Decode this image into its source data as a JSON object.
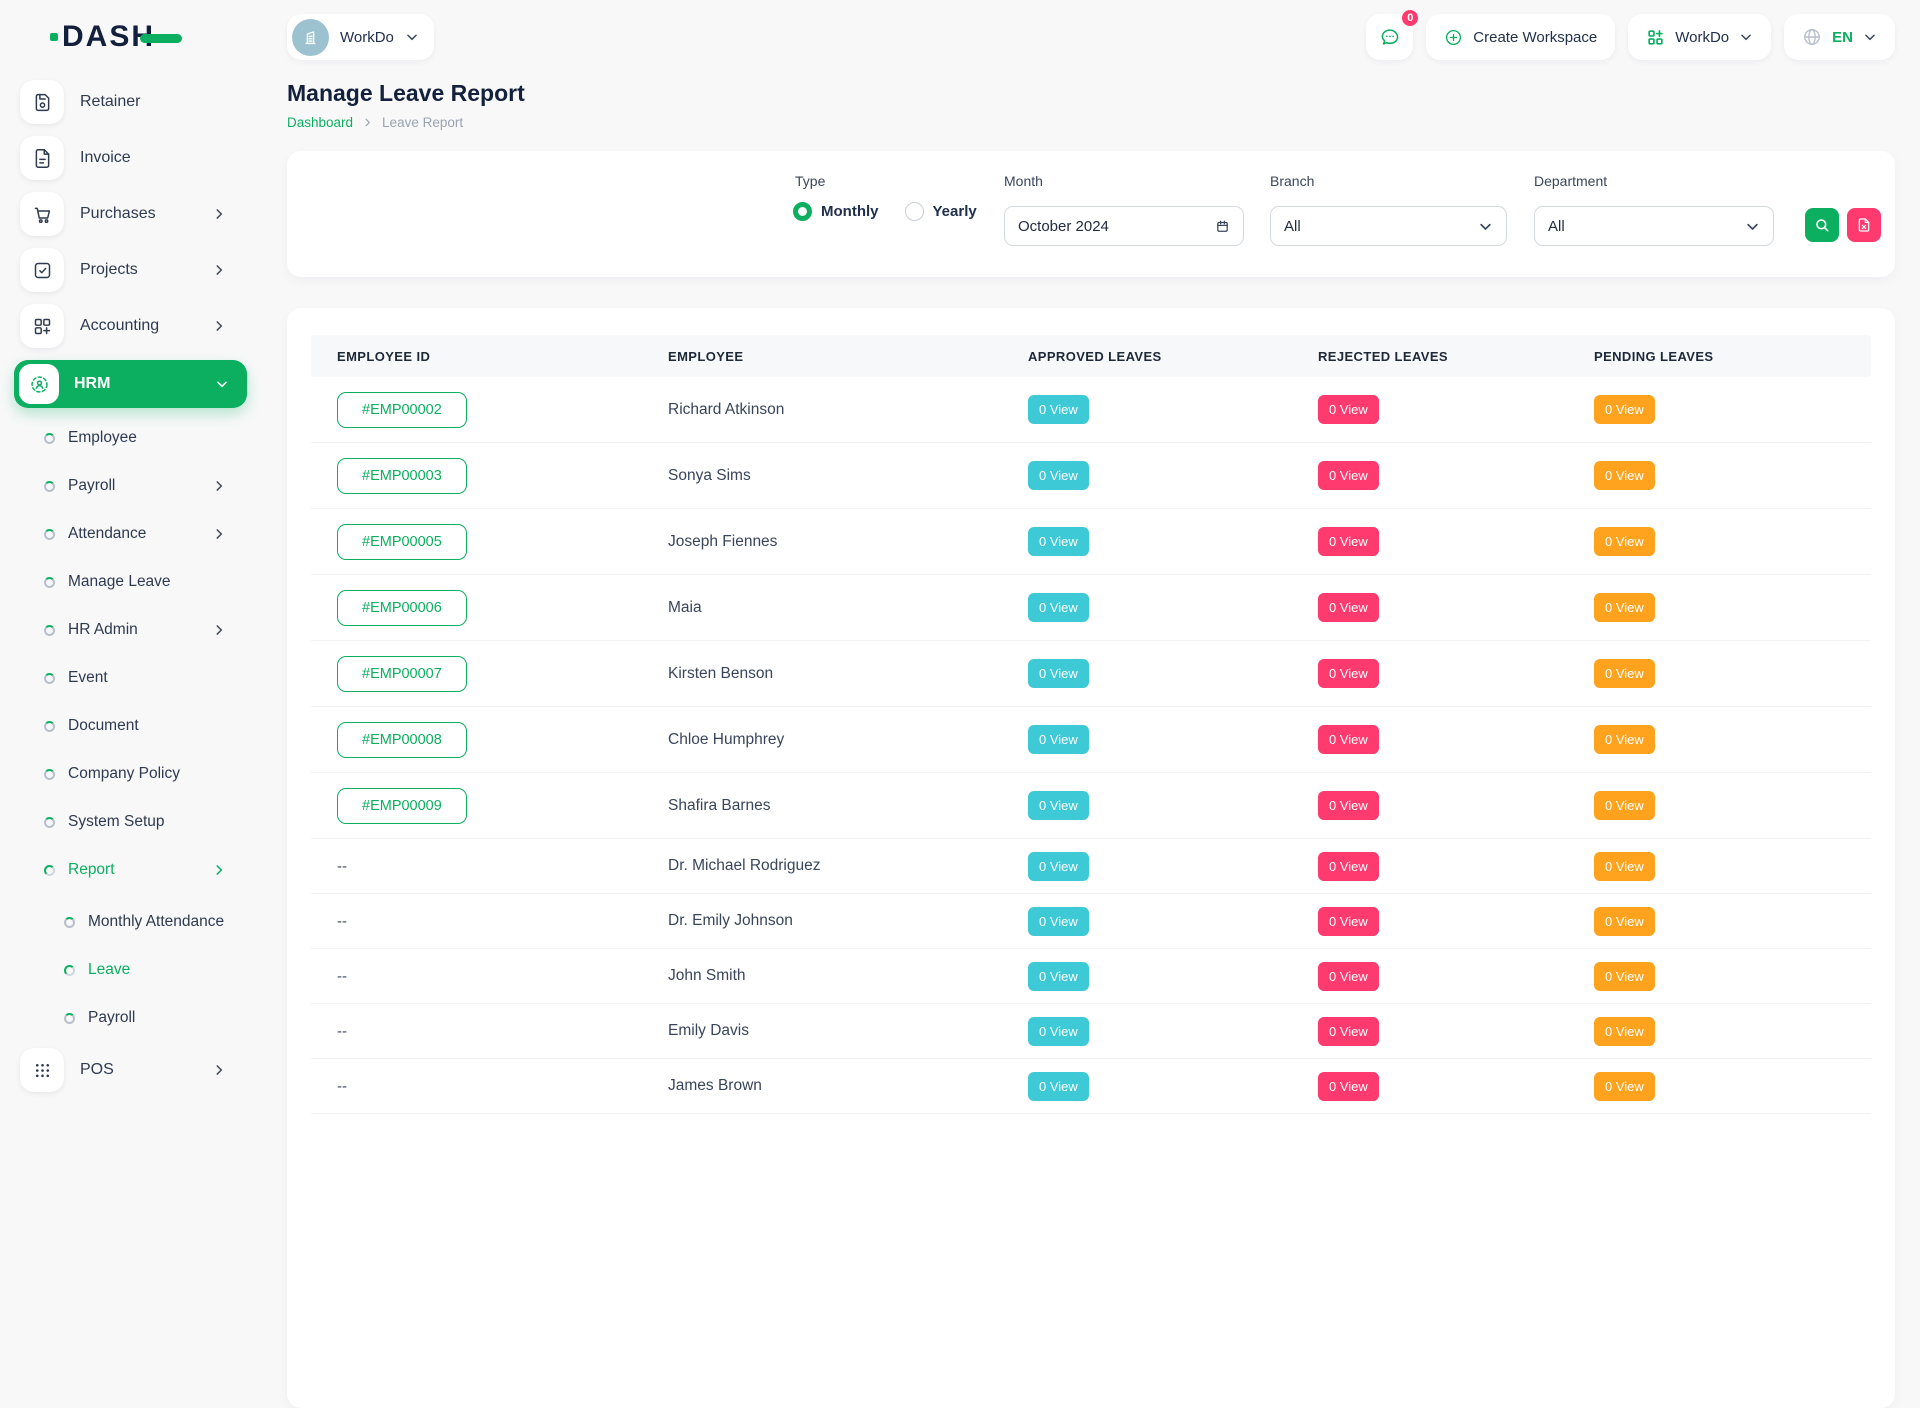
{
  "colors": {
    "primary": "#0caf60",
    "info": "#3ec9d6",
    "danger": "#ff3a6e",
    "warning": "#ffa21d",
    "dark": "#14213c"
  },
  "brand": {
    "name": "DASH"
  },
  "topbar": {
    "workspace_label": "WorkDo",
    "messages_badge": "0",
    "create_workspace_label": "Create Workspace",
    "workdo_label": "WorkDo",
    "language": "EN"
  },
  "sidebar": {
    "top_items": [
      {
        "label": "Retainer",
        "icon": "save-icon",
        "chevron": false
      },
      {
        "label": "Invoice",
        "icon": "invoice-icon",
        "chevron": false
      },
      {
        "label": "Purchases",
        "icon": "cart-icon",
        "chevron": true
      },
      {
        "label": "Projects",
        "icon": "check-square-icon",
        "chevron": true
      },
      {
        "label": "Accounting",
        "icon": "grid-plus-icon",
        "chevron": true
      }
    ],
    "hrm_label": "HRM",
    "hrm_submenu": [
      {
        "label": "Employee",
        "chevron": false,
        "active": false
      },
      {
        "label": "Payroll",
        "chevron": true,
        "active": false
      },
      {
        "label": "Attendance",
        "chevron": true,
        "active": false
      },
      {
        "label": "Manage Leave",
        "chevron": false,
        "active": false
      },
      {
        "label": "HR Admin",
        "chevron": true,
        "active": false
      },
      {
        "label": "Event",
        "chevron": false,
        "active": false
      },
      {
        "label": "Document",
        "chevron": false,
        "active": false
      },
      {
        "label": "Company Policy",
        "chevron": false,
        "active": false
      },
      {
        "label": "System Setup",
        "chevron": false,
        "active": false
      },
      {
        "label": "Report",
        "chevron": true,
        "active": true
      }
    ],
    "report_submenu": [
      {
        "label": "Monthly Attendance",
        "chevron": false,
        "active": false
      },
      {
        "label": "Leave",
        "chevron": false,
        "active": true
      },
      {
        "label": "Payroll",
        "chevron": false,
        "active": false
      }
    ],
    "pos_label": "POS"
  },
  "page": {
    "title": "Manage Leave Report",
    "breadcrumb_home": "Dashboard",
    "breadcrumb_current": "Leave Report"
  },
  "filters": {
    "type_label": "Type",
    "monthly_label": "Monthly",
    "yearly_label": "Yearly",
    "type_selected": "Monthly",
    "month_label": "Month",
    "month_value": "October 2024",
    "branch_label": "Branch",
    "branch_value": "All",
    "department_label": "Department",
    "department_value": "All"
  },
  "table": {
    "headers": [
      "EMPLOYEE ID",
      "EMPLOYEE",
      "APPROVED LEAVES",
      "REJECTED LEAVES",
      "PENDING LEAVES"
    ],
    "rows": [
      {
        "id": "#EMP00002",
        "name": "Richard Atkinson",
        "approved": "0 View",
        "rejected": "0 View",
        "pending": "0 View"
      },
      {
        "id": "#EMP00003",
        "name": "Sonya Sims",
        "approved": "0 View",
        "rejected": "0 View",
        "pending": "0 View"
      },
      {
        "id": "#EMP00005",
        "name": "Joseph Fiennes",
        "approved": "0 View",
        "rejected": "0 View",
        "pending": "0 View"
      },
      {
        "id": "#EMP00006",
        "name": "Maia",
        "approved": "0 View",
        "rejected": "0 View",
        "pending": "0 View"
      },
      {
        "id": "#EMP00007",
        "name": "Kirsten Benson",
        "approved": "0 View",
        "rejected": "0 View",
        "pending": "0 View"
      },
      {
        "id": "#EMP00008",
        "name": "Chloe Humphrey",
        "approved": "0 View",
        "rejected": "0 View",
        "pending": "0 View"
      },
      {
        "id": "#EMP00009",
        "name": "Shafira Barnes",
        "approved": "0 View",
        "rejected": "0 View",
        "pending": "0 View"
      },
      {
        "id": "--",
        "name": "Dr. Michael Rodriguez",
        "approved": "0 View",
        "rejected": "0 View",
        "pending": "0 View"
      },
      {
        "id": "--",
        "name": "Dr. Emily Johnson",
        "approved": "0 View",
        "rejected": "0 View",
        "pending": "0 View"
      },
      {
        "id": "--",
        "name": "John Smith",
        "approved": "0 View",
        "rejected": "0 View",
        "pending": "0 View"
      },
      {
        "id": "--",
        "name": "Emily Davis",
        "approved": "0 View",
        "rejected": "0 View",
        "pending": "0 View"
      },
      {
        "id": "--",
        "name": "James Brown",
        "approved": "0 View",
        "rejected": "0 View",
        "pending": "0 View"
      }
    ]
  }
}
